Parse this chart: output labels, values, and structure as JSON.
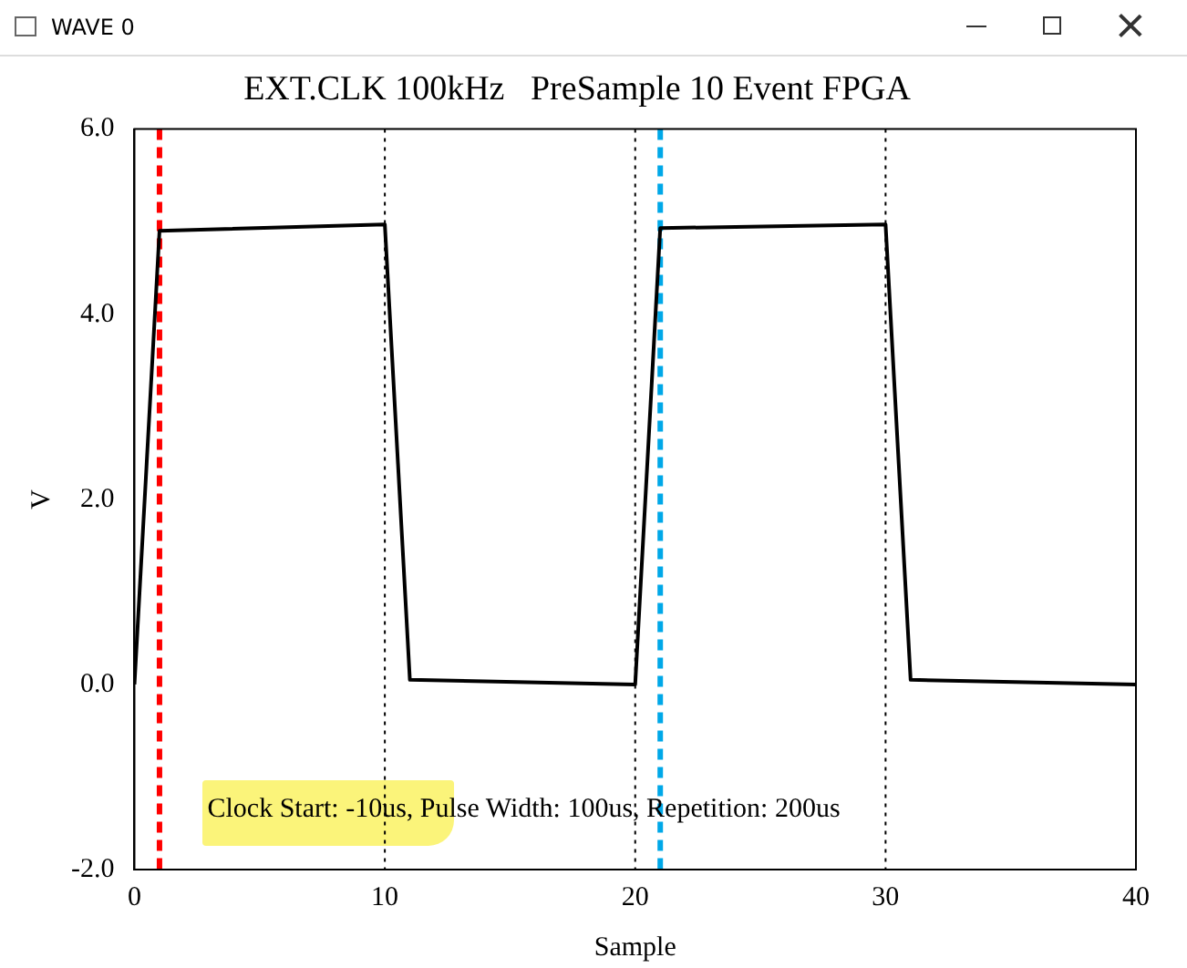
{
  "chart_data": {
    "type": "line",
    "title": "EXT.CLK 100kHz   PreSample 10 Event FPGA",
    "xlabel": "Sample",
    "ylabel": "V",
    "x": [
      0,
      1,
      10,
      11,
      20,
      21,
      30,
      31,
      40
    ],
    "series": [
      {
        "color": "#000000",
        "values": [
          0.0,
          4.9,
          4.97,
          0.05,
          0.0,
          4.93,
          4.97,
          0.05,
          0.0
        ]
      }
    ],
    "xlim": [
      0,
      40
    ],
    "xticks": [
      0,
      10,
      20,
      30,
      40
    ],
    "ylim": [
      -2,
      6
    ],
    "yticks": [
      {
        "value": -2,
        "label": "-2.0"
      },
      {
        "value": 0,
        "label": "0.0"
      },
      {
        "value": 2,
        "label": "2.0"
      },
      {
        "value": 4,
        "label": "4.0"
      },
      {
        "value": 6,
        "label": "6.0"
      }
    ],
    "ref_lines": [
      {
        "axis": "x",
        "value": 1,
        "color": "#ff0000",
        "line_style": "dashed"
      },
      {
        "axis": "x",
        "value": 10,
        "color": "#000000",
        "line_style": "dotted"
      },
      {
        "axis": "x",
        "value": 20,
        "color": "#000000",
        "line_style": "dotted"
      },
      {
        "axis": "x",
        "value": 30,
        "color": "#000000",
        "line_style": "dotted"
      },
      {
        "axis": "x",
        "value": 21,
        "color": "#00a8e8",
        "line_style": "dashed"
      }
    ],
    "annotations": [
      "WAVE 0",
      "Clock Start: -10us, Pulse Width: 100us, Repetition: 200us"
    ],
    "grid": false,
    "legend": false,
    "marker": "none",
    "line_style": "solid"
  }
}
